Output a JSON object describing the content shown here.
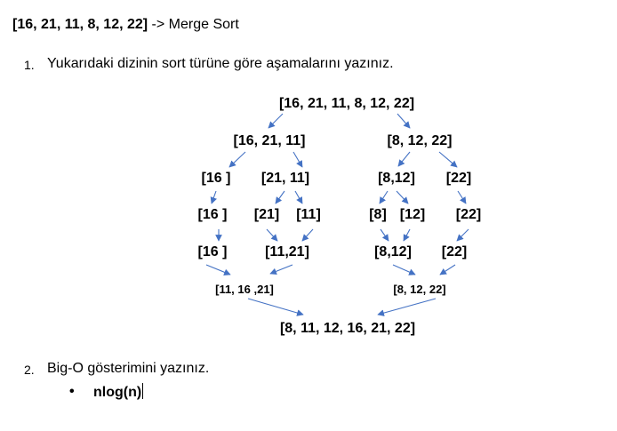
{
  "heading": {
    "array": "[16, 21, 11, 8, 12, 22]",
    "suffix": " -> Merge Sort"
  },
  "q1": {
    "num": "1.",
    "text": "Yukarıdaki dizinin sort türüne göre aşamalarını yazınız."
  },
  "tree": {
    "root": "[16, 21, 11, 8, 12, 22]",
    "l1_left": "[16, 21, 11]",
    "l1_right": "[8, 12, 22]",
    "l2_a": "[16 ]",
    "l2_b": "[21, 11]",
    "l2_c": "[8,12]",
    "l2_d": "[22]",
    "l3_a": "[16 ]",
    "l3_b": "[21]",
    "l3_c": "[11]",
    "l3_d": "[8]",
    "l3_e": "[12]",
    "l3_f": "[22]",
    "l4_a": "[16 ]",
    "l4_b": "[11,21]",
    "l4_c": "[8,12]",
    "l4_d": "[22]",
    "l5_left": "[11, 16 ,21]",
    "l5_right": "[8, 12, 22]",
    "result": "[8, 11, 12, 16, 21, 22]"
  },
  "q2": {
    "num": "2.",
    "text": "Big-O gösterimini yazınız.",
    "bullet": "•",
    "answer": "nlog(n)"
  },
  "colors": {
    "arrow": "#4472C4",
    "text": "#000000"
  }
}
